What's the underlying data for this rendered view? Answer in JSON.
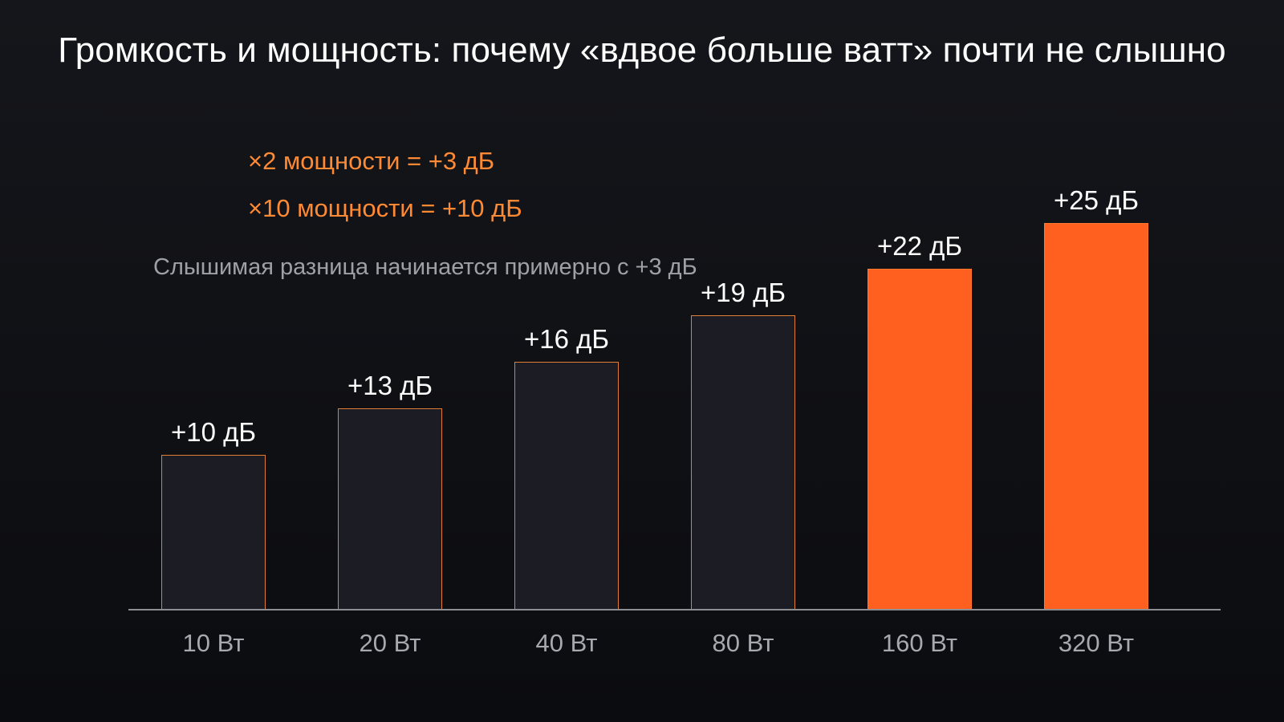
{
  "chart_data": {
    "type": "bar",
    "title": "Громкость и мощность: почему «вдвое больше ватт» почти не слышно",
    "xlabel": "",
    "ylabel": "",
    "categories": [
      "10 Вт",
      "20 Вт",
      "40 Вт",
      "80 Вт",
      "160 Вт",
      "320 Вт"
    ],
    "values": [
      10,
      13,
      16,
      19,
      22,
      25
    ],
    "value_labels": [
      "+10 дБ",
      "+13 дБ",
      "+16 дБ",
      "+19 дБ",
      "+22 дБ",
      "+25 дБ"
    ],
    "highlighted": [
      false,
      false,
      false,
      false,
      true,
      true
    ],
    "ylim": [
      0,
      25
    ],
    "grid": false,
    "legend": "none",
    "annotations": [
      "×2 мощности = +3 дБ",
      "×10 мощности = +10 дБ",
      "Слышимая разница начинается примерно с +3 дБ"
    ],
    "colors": {
      "background": "#111216",
      "bar_default": "#1b1c24",
      "bar_outline": "#e07e35",
      "bar_highlight": "#ff5f1f",
      "annotation": "#ff8a33",
      "subnote": "#9ea0a6",
      "axis": "#8c8e93"
    }
  }
}
